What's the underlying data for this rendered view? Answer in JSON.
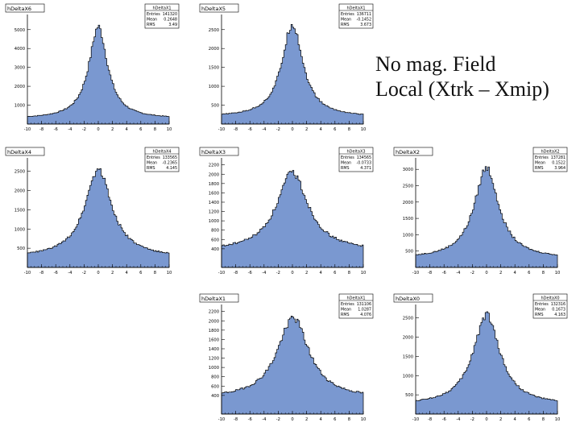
{
  "caption": {
    "line1": "No mag. Field",
    "line2": "Local (Xtrk – Xmip)"
  },
  "colors": {
    "fill": "#7a98d0",
    "outline": "#000000",
    "frame": "#000000",
    "background": "#ffffff"
  },
  "stat_labels": [
    "Entries",
    "Mean",
    "RMS"
  ],
  "chart_data": [
    {
      "type": "bar",
      "title": "hDeltaX6",
      "stats": {
        "name": "hDeltaX1",
        "entries": "141320",
        "mean": "0.2648",
        "rms": "3.49"
      },
      "xlim": [
        -10,
        10
      ],
      "ylim": [
        0,
        5800
      ],
      "xticks": [
        -10,
        -8,
        -6,
        -4,
        -2,
        0,
        2,
        4,
        6,
        8,
        10
      ],
      "yticks": [
        1000,
        2000,
        3000,
        4000,
        5000
      ],
      "peak": 5150,
      "width": 1.6,
      "base": 280
    },
    {
      "type": "bar",
      "title": "hDeltaX5",
      "stats": {
        "name": "hDeltaX1",
        "entries": "136711",
        "mean": "-0.1452",
        "rms": "3.673"
      },
      "xlim": [
        -10,
        10
      ],
      "ylim": [
        0,
        2900
      ],
      "xticks": [
        -10,
        -8,
        -6,
        -4,
        -2,
        0,
        2,
        4,
        6,
        8,
        10
      ],
      "yticks": [
        500,
        1000,
        1500,
        2000,
        2500
      ],
      "peak": 2650,
      "width": 1.8,
      "base": 180
    },
    {
      "type": "bar",
      "title": "hDeltaX4",
      "stats": {
        "name": "hDeltaX4",
        "entries": "133565",
        "mean": "-0.2365",
        "rms": "4.145"
      },
      "xlim": [
        -10,
        10
      ],
      "ylim": [
        0,
        2850
      ],
      "xticks": [
        -10,
        -8,
        -6,
        -4,
        -2,
        0,
        2,
        4,
        6,
        8,
        10
      ],
      "yticks": [
        500,
        1000,
        1500,
        2000,
        2500
      ],
      "peak": 2560,
      "width": 2.3,
      "base": 260
    },
    {
      "type": "bar",
      "title": "hDeltaX3",
      "stats": {
        "name": "hDeltaX3",
        "entries": "134565",
        "mean": "-0.0733",
        "rms": "4.371"
      },
      "xlim": [
        -10,
        10
      ],
      "ylim": [
        0,
        2350
      ],
      "xticks": [
        -10,
        -8,
        -6,
        -4,
        -2,
        0,
        2,
        4,
        6,
        8,
        10
      ],
      "yticks": [
        400,
        600,
        800,
        1000,
        1200,
        1400,
        1600,
        1800,
        2000,
        2200
      ],
      "peak": 2030,
      "width": 2.7,
      "base": 350
    },
    {
      "type": "bar",
      "title": "hDeltaX2",
      "stats": {
        "name": "hDeltaX2",
        "entries": "137281",
        "mean": "0.1522",
        "rms": "3.964"
      },
      "xlim": [
        -10,
        10
      ],
      "ylim": [
        0,
        3350
      ],
      "xticks": [
        -10,
        -8,
        -6,
        -4,
        -2,
        0,
        2,
        4,
        6,
        8,
        10
      ],
      "yticks": [
        500,
        1000,
        1500,
        2000,
        2500,
        3000
      ],
      "peak": 3050,
      "width": 2.1,
      "base": 270
    },
    {
      "type": "bar",
      "title": "hDeltaX1",
      "stats": {
        "name": "hDeltaX1",
        "entries": "131106",
        "mean": "1.0287",
        "rms": "4.076"
      },
      "xlim": [
        -10,
        10
      ],
      "ylim": [
        0,
        2350
      ],
      "xticks": [
        -10,
        -8,
        -6,
        -4,
        -2,
        0,
        2,
        4,
        6,
        8,
        10
      ],
      "yticks": [
        400,
        600,
        800,
        1000,
        1200,
        1400,
        1600,
        1800,
        2000,
        2200
      ],
      "peak": 2070,
      "width": 2.7,
      "base": 330
    },
    {
      "type": "bar",
      "title": "hDeltaX0",
      "stats": {
        "name": "hDeltaX0",
        "entries": "132316",
        "mean": "0.1673",
        "rms": "4.163"
      },
      "xlim": [
        -10,
        10
      ],
      "ylim": [
        0,
        2850
      ],
      "xticks": [
        -10,
        -8,
        -6,
        -4,
        -2,
        0,
        2,
        4,
        6,
        8,
        10
      ],
      "yticks": [
        500,
        1000,
        1500,
        2000,
        2500
      ],
      "peak": 2580,
      "width": 2.3,
      "base": 230
    }
  ]
}
